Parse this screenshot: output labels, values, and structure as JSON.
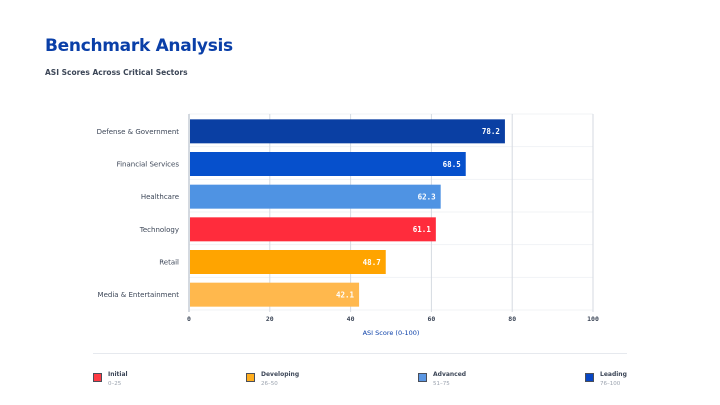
{
  "header": {
    "title": "Benchmark Analysis",
    "subtitle": "ASI Scores Across Critical Sectors"
  },
  "chart_data": {
    "type": "bar",
    "orientation": "horizontal",
    "title": "Benchmark Analysis",
    "subtitle": "ASI Scores Across Critical Sectors",
    "xlabel": "ASI Score (0-100)",
    "ylabel": "",
    "xlim": [
      0,
      100
    ],
    "xticks": [
      0,
      20,
      40,
      60,
      80,
      100
    ],
    "grid": true,
    "categories": [
      "Defense & Government",
      "Financial Services",
      "Healthcare",
      "Technology",
      "Retail",
      "Media & Entertainment"
    ],
    "values": [
      78.2,
      68.5,
      62.3,
      61.1,
      48.7,
      42.1
    ],
    "value_labels": [
      "78.2",
      "68.5",
      "62.3",
      "61.1",
      "48.7",
      "42.1"
    ],
    "bar_colors": [
      "#0a3fa3",
      "#0650cc",
      "#4f93e3",
      "#ff2c3c",
      "#ffa400",
      "#ffb84d"
    ],
    "legend_position": "bottom"
  },
  "legend": [
    {
      "name": "Initial",
      "range": "0–25",
      "color": "#ff3b44"
    },
    {
      "name": "Developing",
      "range": "26–50",
      "color": "#ffae1f"
    },
    {
      "name": "Advanced",
      "range": "51–75",
      "color": "#5b97e3"
    },
    {
      "name": "Leading",
      "range": "76–100",
      "color": "#0846c4"
    }
  ]
}
